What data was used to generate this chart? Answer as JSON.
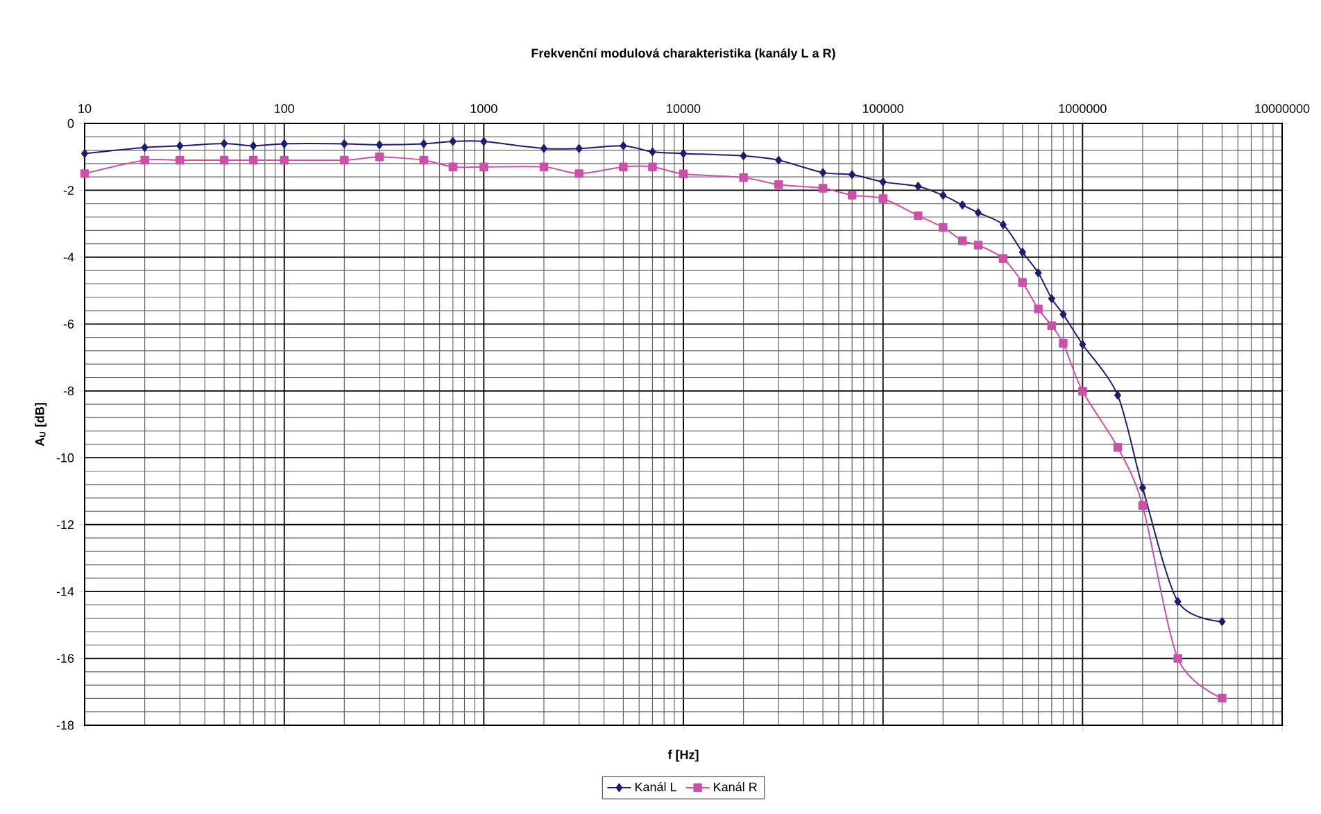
{
  "chart_data": {
    "type": "line",
    "title": "Frekvenční modulová charakteristika (kanály L a R)",
    "xlabel": "f [Hz]",
    "ylabel": "A$_{U}$ [dB]",
    "log": "x",
    "xlim": [
      10,
      10000000
    ],
    "xticks": [
      10,
      100,
      1000,
      10000,
      100000,
      1000000,
      10000000
    ],
    "ylim": [
      -18,
      0
    ],
    "yticks": [
      0,
      -2,
      -4,
      -6,
      -8,
      -10,
      -12,
      -14,
      -16,
      -18
    ],
    "grid": true,
    "legend": "bottom",
    "line_style": "solid",
    "x": [
      10,
      20,
      30,
      50,
      70,
      100,
      200,
      300,
      500,
      700,
      1000,
      2000,
      3000,
      5000,
      7000,
      10000,
      20000,
      30000,
      50000,
      70000,
      100000,
      150000,
      200000,
      250000,
      300000,
      400000,
      500000,
      600000,
      700000,
      800000,
      1000000,
      1500000,
      2000000,
      3000000,
      5000000
    ],
    "series": [
      {
        "name": "Kanál L",
        "color": "#1c1c73",
        "marker": "diamond",
        "values": [
          -0.9,
          -0.72,
          -0.67,
          -0.6,
          -0.67,
          -0.61,
          -0.61,
          -0.64,
          -0.61,
          -0.54,
          -0.54,
          -0.75,
          -0.75,
          -0.67,
          -0.85,
          -0.9,
          -0.97,
          -1.1,
          -1.47,
          -1.53,
          -1.75,
          -1.88,
          -2.15,
          -2.44,
          -2.67,
          -3.03,
          -3.85,
          -4.47,
          -5.24,
          -5.71,
          -6.61,
          -8.13,
          -10.9,
          -14.3,
          -14.9
        ]
      },
      {
        "name": "Kanál R",
        "color": "#cc4fa8",
        "marker": "square",
        "values": [
          -1.5,
          -1.1,
          -1.1,
          -1.1,
          -1.1,
          -1.1,
          -1.1,
          -1.0,
          -1.1,
          -1.3,
          -1.3,
          -1.3,
          -1.5,
          -1.3,
          -1.3,
          -1.51,
          -1.62,
          -1.83,
          -1.94,
          -2.15,
          -2.25,
          -2.76,
          -3.11,
          -3.51,
          -3.64,
          -4.04,
          -4.76,
          -5.55,
          -6.05,
          -6.58,
          -8.01,
          -9.69,
          -11.43,
          -16.0,
          -17.19
        ]
      }
    ]
  }
}
